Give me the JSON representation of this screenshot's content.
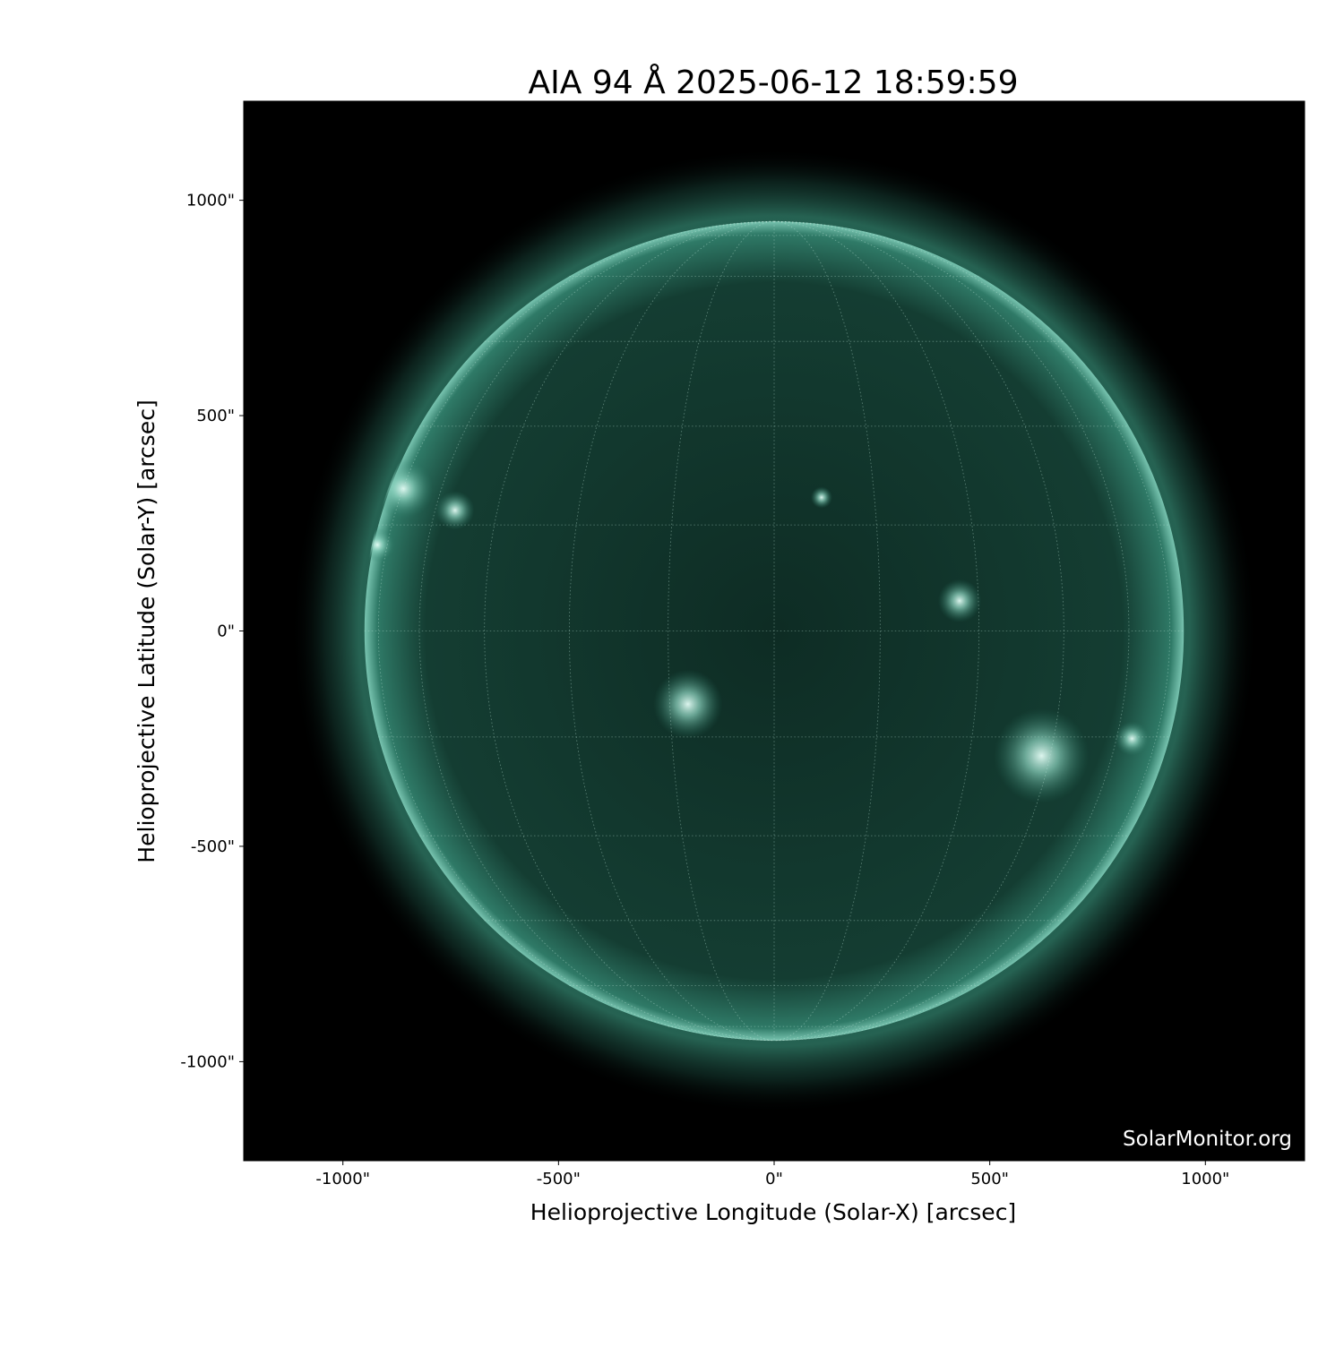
{
  "title": "AIA 94 Å 2025-06-12 18:59:59",
  "watermark": "SolarMonitor.org",
  "chart_data": {
    "type": "image",
    "title": "AIA 94 Å 2025-06-12 18:59:59",
    "xlabel": "Helioprojective Longitude (Solar-X) [arcsec]",
    "ylabel": "Helioprojective Latitude (Solar-Y) [arcsec]",
    "xlim": [
      -1230,
      1230
    ],
    "ylim": [
      -1230,
      1230
    ],
    "x_ticks": [
      -1000,
      -500,
      0,
      500,
      1000
    ],
    "y_ticks": [
      -1000,
      -500,
      0,
      500,
      1000
    ],
    "x_tick_labels": [
      "-1000\"",
      "-500\"",
      "0\"",
      "500\"",
      "1000\""
    ],
    "y_tick_labels": [
      "-1000\"",
      "-500\"",
      "0\"",
      "500\"",
      "1000\""
    ],
    "solar_radius_arcsec": 950,
    "heliographic_grid_spacing_deg": 15,
    "colormap_color": "#5fb9a3",
    "background_color": "#000000",
    "bright_regions_arcsec": [
      {
        "x": 620,
        "y": -290,
        "r": 110
      },
      {
        "x": -860,
        "y": 330,
        "r": 70
      },
      {
        "x": -740,
        "y": 280,
        "r": 45
      },
      {
        "x": 430,
        "y": 70,
        "r": 50
      },
      {
        "x": -200,
        "y": -170,
        "r": 80
      },
      {
        "x": 830,
        "y": -250,
        "r": 40
      },
      {
        "x": -920,
        "y": 200,
        "r": 40
      },
      {
        "x": 110,
        "y": 310,
        "r": 25
      }
    ]
  }
}
